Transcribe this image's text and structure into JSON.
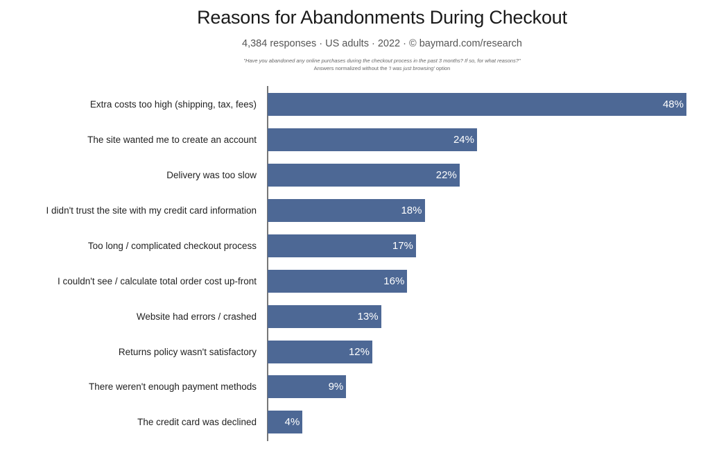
{
  "header": {
    "title": "Reasons for Abandonments During Checkout",
    "subtitle": "4,384 responses  ·  US adults  ·  2022  ·  ©  baymard.com/research",
    "question": "\"Have you abandoned any online purchases during the checkout process in the past 3 months? If so, for what reasons?\"",
    "note_prefix": "Answers normalized without the ",
    "note_emphasis": "'I was just browsing'",
    "note_suffix": " option"
  },
  "colors": {
    "bar": "#4d6895",
    "value_text": "#ffffff"
  },
  "rows": [
    {
      "label": "Extra costs too high (shipping, tax, fees)",
      "value": "48%"
    },
    {
      "label": "The site wanted me to create an account",
      "value": "24%"
    },
    {
      "label": "Delivery was too slow",
      "value": "22%"
    },
    {
      "label": "I didn't trust the site with my credit card information",
      "value": "18%"
    },
    {
      "label": "Too long / complicated checkout process",
      "value": "17%"
    },
    {
      "label": "I couldn't see / calculate total order cost up-front",
      "value": "16%"
    },
    {
      "label": "Website had errors / crashed",
      "value": "13%"
    },
    {
      "label": "Returns policy wasn't satisfactory",
      "value": "12%"
    },
    {
      "label": "There weren't enough payment methods",
      "value": "9%"
    },
    {
      "label": "The credit card was declined",
      "value": "4%"
    }
  ],
  "chart_data": {
    "type": "bar",
    "orientation": "horizontal",
    "title": "Reasons for Abandonments During Checkout",
    "subtitle": "4,384 responses · US adults · 2022 · © baymard.com/research",
    "annotations": [
      "\"Have you abandoned any online purchases during the checkout process in the past 3 months? If so, for what reasons?\"",
      "Answers normalized without the 'I was just browsing' option"
    ],
    "categories": [
      "Extra costs too high (shipping, tax, fees)",
      "The site wanted me to create an account",
      "Delivery was too slow",
      "I didn't trust the site with my credit card information",
      "Too long / complicated checkout process",
      "I couldn't see / calculate total order cost up-front",
      "Website had errors / crashed",
      "Returns policy wasn't satisfactory",
      "There weren't enough payment methods",
      "The credit card was declined"
    ],
    "values": [
      48,
      24,
      22,
      18,
      17,
      16,
      13,
      12,
      9,
      4
    ],
    "unit": "%",
    "xlabel": "",
    "ylabel": "",
    "xlim": [
      0,
      48
    ],
    "grid": false,
    "legend": null,
    "data_labels": true
  }
}
